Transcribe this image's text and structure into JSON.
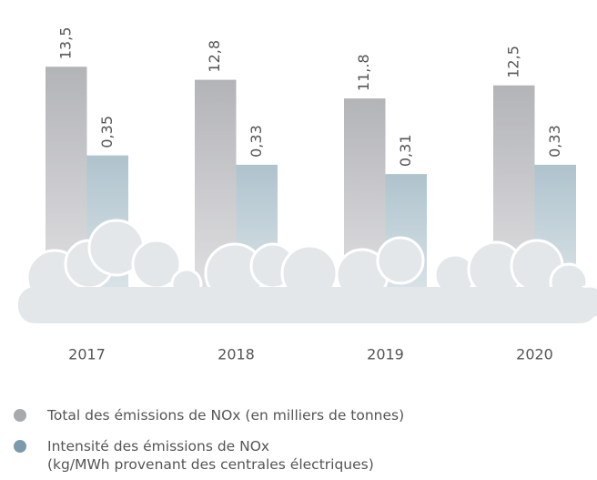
{
  "chart_data": {
    "type": "bar",
    "categories": [
      "2017",
      "2018",
      "2019",
      "2020"
    ],
    "series": [
      {
        "name": "Total des émissions de NOx (en milliers de tonnes)",
        "color": "#b3b4b8",
        "values": [
          13.5,
          12.8,
          11.8,
          12.5
        ],
        "value_labels": [
          "13,5",
          "12,8",
          "11,.8",
          "12,5"
        ]
      },
      {
        "name": "Intensité des émissions de NOx\n(kg/MWh provenant des centrales électriques)",
        "color": "#afc3cd",
        "values": [
          0.35,
          0.33,
          0.31,
          0.33
        ],
        "value_labels": [
          "0,35",
          "0,33",
          "0,31",
          "0,33"
        ],
        "axis": "y2"
      }
    ],
    "ylim": [
      0,
      15
    ],
    "y2lim": [
      0,
      0.6
    ]
  }
}
